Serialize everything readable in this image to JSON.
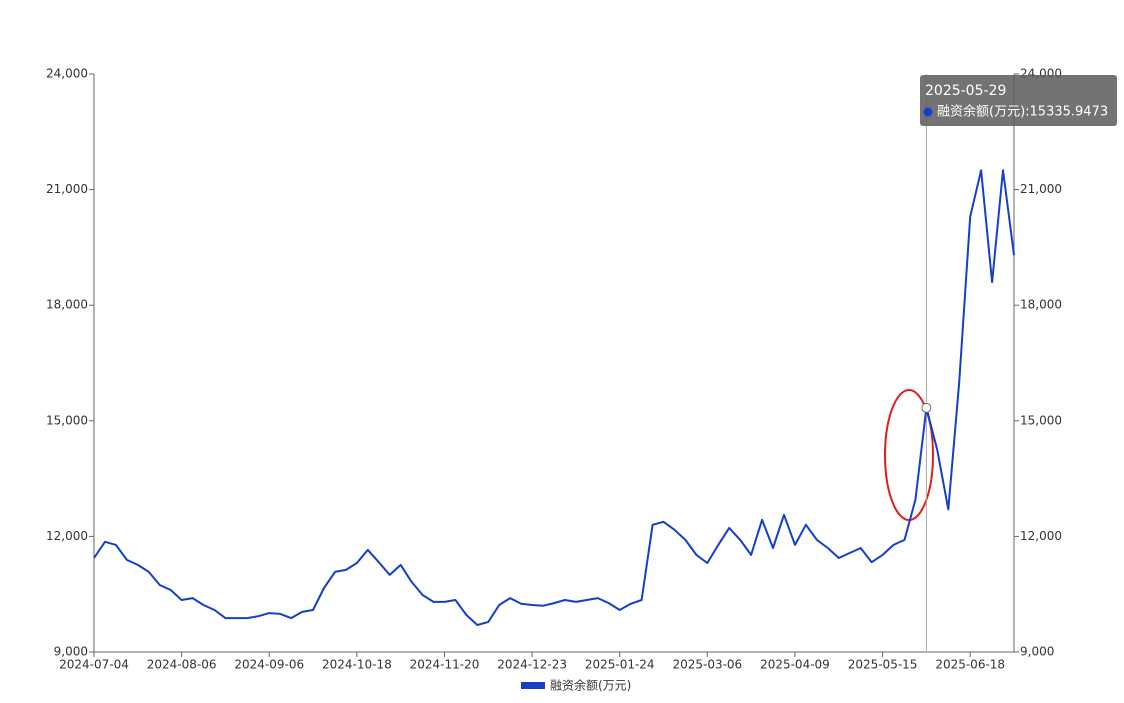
{
  "chart_data": {
    "type": "line",
    "categories": [
      "2024-07-04",
      null,
      null,
      null,
      null,
      null,
      null,
      null,
      "2024-08-06",
      null,
      null,
      null,
      null,
      null,
      null,
      null,
      "2024-09-06",
      null,
      null,
      null,
      null,
      null,
      null,
      null,
      "2024-10-18",
      null,
      null,
      null,
      null,
      null,
      null,
      null,
      "2024-11-20",
      null,
      null,
      null,
      null,
      null,
      null,
      null,
      "2024-12-23",
      null,
      null,
      null,
      null,
      null,
      null,
      null,
      "2025-01-24",
      null,
      null,
      null,
      null,
      null,
      null,
      null,
      "2025-03-06",
      null,
      null,
      null,
      null,
      null,
      null,
      null,
      "2025-04-09",
      null,
      null,
      null,
      null,
      null,
      null,
      null,
      "2025-05-15",
      null,
      null,
      null,
      null,
      null,
      null,
      null,
      "2025-06-18",
      null,
      null,
      null,
      null
    ],
    "series": [
      {
        "name": "融资余额(万元)",
        "color": "#1240c8",
        "values": [
          11440,
          11860,
          11780,
          11390,
          11260,
          11080,
          10740,
          10610,
          10350,
          10400,
          10220,
          10090,
          9880,
          9880,
          9880,
          9930,
          10010,
          9990,
          9880,
          10040,
          10090,
          10660,
          11080,
          11130,
          11310,
          11650,
          11330,
          11000,
          11260,
          10820,
          10480,
          10300,
          10300,
          10350,
          9960,
          9700,
          9780,
          10220,
          10400,
          10250,
          10220,
          10200,
          10270,
          10350,
          10300,
          10350,
          10400,
          10270,
          10090,
          10250,
          10350,
          12300,
          12380,
          12170,
          11910,
          11520,
          11310,
          11780,
          12220,
          11910,
          11520,
          12430,
          11700,
          12560,
          11780,
          12300,
          11910,
          11700,
          11440,
          11570,
          11700,
          11330,
          11520,
          11780,
          11910,
          12950,
          15335.9473,
          14240,
          12700,
          16000,
          20300,
          21500,
          18600,
          21500,
          19300
        ]
      }
    ],
    "ylim": [
      9000,
      24000
    ],
    "yticks": [
      {
        "value": 9000,
        "label": "9,000"
      },
      {
        "value": 12000,
        "label": "12,000"
      },
      {
        "value": 15000,
        "label": "15,000"
      },
      {
        "value": 18000,
        "label": "18,000"
      },
      {
        "value": 21000,
        "label": "21,000"
      },
      {
        "value": 24000,
        "label": "24,000"
      }
    ],
    "y2lim": [
      9000,
      24000
    ],
    "y2ticks": [
      {
        "value": 9000,
        "label": "9,000"
      },
      {
        "value": 12000,
        "label": "12,000"
      },
      {
        "value": 15000,
        "label": "15,000"
      },
      {
        "value": 18000,
        "label": "18,000"
      },
      {
        "value": 21000,
        "label": "21,000"
      },
      {
        "value": 24000,
        "label": "24,000"
      }
    ],
    "grid": false,
    "tooltip": {
      "date": "2025-05-29",
      "text": "融资余额(万元):15335.9473"
    }
  }
}
